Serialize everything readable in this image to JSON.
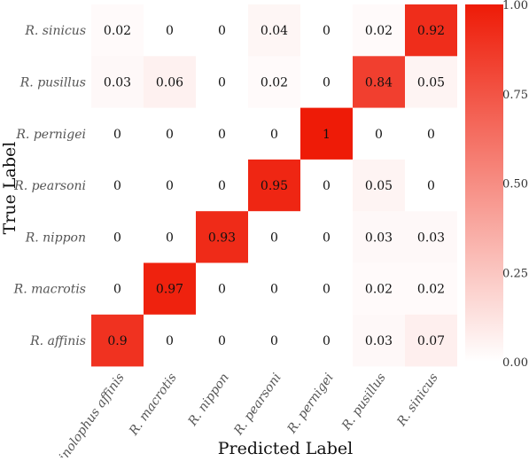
{
  "chart_data": {
    "type": "heatmap",
    "xlabel": "Predicted Label",
    "ylabel": "True Label",
    "x_categories": [
      "Rhinolophus affinis",
      "R. macrotis",
      "R. nippon",
      "R. pearsoni",
      "R. pernigei",
      "R. pusillus",
      "R. sinicus"
    ],
    "y_categories": [
      "R. sinicus",
      "R. pusillus",
      "R. pernigei",
      "R. pearsoni",
      "R. nippon",
      "R. macrotis",
      "R. affinis"
    ],
    "values": [
      [
        0.02,
        0,
        0,
        0.04,
        0,
        0.02,
        0.92
      ],
      [
        0.03,
        0.06,
        0,
        0.02,
        0,
        0.84,
        0.05
      ],
      [
        0,
        0,
        0,
        0,
        1,
        0,
        0
      ],
      [
        0,
        0,
        0,
        0.95,
        0,
        0.05,
        0
      ],
      [
        0,
        0,
        0.93,
        0,
        0,
        0.03,
        0.03
      ],
      [
        0,
        0.97,
        0,
        0,
        0,
        0.02,
        0.02
      ],
      [
        0.9,
        0,
        0,
        0,
        0,
        0.03,
        0.07
      ]
    ],
    "value_labels": [
      [
        "0.02",
        "0",
        "0",
        "0.04",
        "0",
        "0.02",
        "0.92"
      ],
      [
        "0.03",
        "0.06",
        "0",
        "0.02",
        "0",
        "0.84",
        "0.05"
      ],
      [
        "0",
        "0",
        "0",
        "0",
        "1",
        "0",
        "0"
      ],
      [
        "0",
        "0",
        "0",
        "0.95",
        "0",
        "0.05",
        "0"
      ],
      [
        "0",
        "0",
        "0.93",
        "0",
        "0",
        "0.03",
        "0.03"
      ],
      [
        "0",
        "0.97",
        "0",
        "0",
        "0",
        "0.02",
        "0.02"
      ],
      [
        "0.9",
        "0",
        "0",
        "0",
        "0",
        "0.03",
        "0.07"
      ]
    ],
    "colorbar": {
      "range": [
        0,
        1
      ],
      "ticks": [
        0,
        0.25,
        0.5,
        0.75,
        1
      ],
      "tick_labels": [
        "0.00",
        "0.25",
        "0.50",
        "0.75",
        "1.00"
      ],
      "low_color": "#ffffff",
      "high_color": "#ee1b07"
    }
  }
}
